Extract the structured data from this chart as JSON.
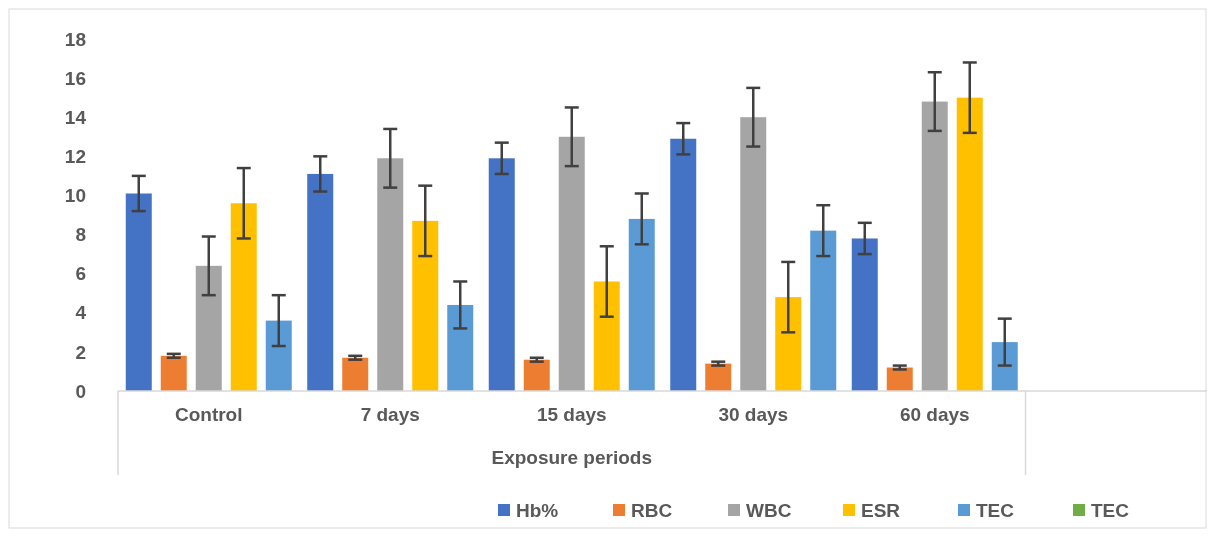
{
  "chart_data": {
    "type": "bar",
    "xlabel": "Exposure periods",
    "categories": [
      "Control",
      "7 days",
      "15 days",
      "30 days",
      "60 days",
      null
    ],
    "ylim": [
      0,
      18
    ],
    "yticks": [
      0,
      2,
      4,
      6,
      8,
      10,
      12,
      14,
      16,
      18
    ],
    "grid": false,
    "legend": "bottom",
    "series": [
      {
        "name": "Hb%",
        "color": "#4472c4",
        "values": [
          10.1,
          11.1,
          11.9,
          12.9,
          7.8,
          null
        ],
        "errors": [
          0.9,
          0.9,
          0.8,
          0.8,
          0.8,
          null
        ]
      },
      {
        "name": "RBC",
        "color": "#ed7d31",
        "values": [
          1.8,
          1.7,
          1.6,
          1.4,
          1.2,
          null
        ],
        "errors": [
          0.1,
          0.1,
          0.1,
          0.1,
          0.1,
          null
        ]
      },
      {
        "name": "WBC",
        "color": "#a5a5a5",
        "values": [
          6.4,
          11.9,
          13.0,
          14.0,
          14.8,
          null
        ],
        "errors": [
          1.5,
          1.5,
          1.5,
          1.5,
          1.5,
          null
        ]
      },
      {
        "name": "ESR",
        "color": "#ffc000",
        "values": [
          9.6,
          8.7,
          5.6,
          4.8,
          15.0,
          null
        ],
        "errors": [
          1.8,
          1.8,
          1.8,
          1.8,
          1.8,
          null
        ]
      },
      {
        "name": "TEC",
        "color": "#5b9bd5",
        "values": [
          3.6,
          4.4,
          8.8,
          8.2,
          2.5,
          null
        ],
        "errors": [
          1.3,
          1.2,
          1.3,
          1.3,
          1.2,
          null
        ]
      },
      {
        "name": "TEC",
        "color": "#70ad47",
        "values": [
          null,
          null,
          null,
          null,
          null,
          null
        ]
      }
    ]
  }
}
